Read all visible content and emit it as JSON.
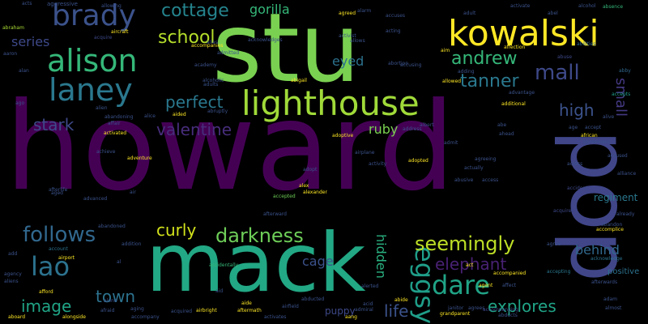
{
  "words": [
    {
      "text": "howard",
      "color": "#440154",
      "size": 150,
      "orient": "h"
    },
    {
      "text": "stu",
      "color": "#7ad151",
      "size": 118,
      "orient": "h"
    },
    {
      "text": "mack",
      "color": "#22a884",
      "size": 100,
      "orient": "h"
    },
    {
      "text": "pop",
      "color": "#404688",
      "size": 100,
      "orient": "v"
    },
    {
      "text": "kowalski",
      "color": "#fde725",
      "size": 44,
      "orient": "h"
    },
    {
      "text": "lighthouse",
      "color": "#a0da39",
      "size": 42,
      "orient": "h"
    },
    {
      "text": "alison",
      "color": "#35b779",
      "size": 38,
      "orient": "h"
    },
    {
      "text": "laney",
      "color": "#2a788e",
      "size": 38,
      "orient": "h"
    },
    {
      "text": "brady",
      "color": "#3b528b",
      "size": 36,
      "orient": "h"
    },
    {
      "text": "lao",
      "color": "#2c728e",
      "size": 32,
      "orient": "h"
    },
    {
      "text": "eggsy",
      "color": "#1f9e89",
      "size": 32,
      "orient": "v"
    },
    {
      "text": "dare",
      "color": "#20a386",
      "size": 32,
      "orient": "h"
    },
    {
      "text": "mall",
      "color": "#3e4989",
      "size": 26,
      "orient": "h"
    },
    {
      "text": "follows",
      "color": "#31688e",
      "size": 26,
      "orient": "h"
    },
    {
      "text": "seemingly",
      "color": "#bddf26",
      "size": 24,
      "orient": "h"
    },
    {
      "text": "darkness",
      "color": "#6ece58",
      "size": 24,
      "orient": "h"
    },
    {
      "text": "andrew",
      "color": "#35b779",
      "size": 22,
      "orient": "h"
    },
    {
      "text": "tanner",
      "color": "#2a788e",
      "size": 22,
      "orient": "h"
    },
    {
      "text": "cottage",
      "color": "#25848e",
      "size": 22,
      "orient": "h"
    },
    {
      "text": "school",
      "color": "#b5de2b",
      "size": 22,
      "orient": "h"
    },
    {
      "text": "perfect",
      "color": "#2a788e",
      "size": 20,
      "orient": "h"
    },
    {
      "text": "valentine",
      "color": "#472d7b",
      "size": 20,
      "orient": "h"
    },
    {
      "text": "stark",
      "color": "#3e4989",
      "size": 20,
      "orient": "h"
    },
    {
      "text": "curly",
      "color": "#d2e21b",
      "size": 20,
      "orient": "h"
    },
    {
      "text": "elephant",
      "color": "#482173",
      "size": 20,
      "orient": "h"
    },
    {
      "text": "image",
      "color": "#20a486",
      "size": 20,
      "orient": "h"
    },
    {
      "text": "town",
      "color": "#2c728e",
      "size": 20,
      "orient": "h"
    },
    {
      "text": "explores",
      "color": "#20a486",
      "size": 20,
      "orient": "h"
    },
    {
      "text": "life",
      "color": "#3b528b",
      "size": 20,
      "orient": "h"
    },
    {
      "text": "high",
      "color": "#3b528b",
      "size": 20,
      "orient": "h"
    },
    {
      "text": "small",
      "color": "#443983",
      "size": 18,
      "orient": "v"
    },
    {
      "text": "hidden",
      "color": "#29af7f",
      "size": 16,
      "orient": "v"
    },
    {
      "text": "series",
      "color": "#3e4989",
      "size": 16,
      "orient": "h"
    },
    {
      "text": "gorilla",
      "color": "#35b779",
      "size": 16,
      "orient": "h"
    },
    {
      "text": "eyed",
      "color": "#2c728e",
      "size": 16,
      "orient": "h"
    },
    {
      "text": "cage",
      "color": "#3b528b",
      "size": 16,
      "orient": "h"
    },
    {
      "text": "ruby",
      "color": "#7ad151",
      "size": 16,
      "orient": "h"
    },
    {
      "text": "behind",
      "color": "#31688e",
      "size": 16,
      "orient": "h"
    },
    {
      "text": "puppy",
      "color": "#3e4989",
      "size": 12,
      "orient": "h"
    },
    {
      "text": "regiment",
      "color": "#2a788e",
      "size": 12,
      "orient": "h"
    },
    {
      "text": "positive",
      "color": "#2c728e",
      "size": 10,
      "orient": "h"
    },
    {
      "text": "aggressive",
      "color": "#3b528b",
      "size": 7,
      "orient": "h"
    },
    {
      "text": "abraham",
      "color": "#aadc32",
      "size": 6,
      "orient": "h"
    },
    {
      "text": "aaron",
      "color": "#3b528b",
      "size": 6,
      "orient": "h"
    },
    {
      "text": "abandon",
      "color": "#3b528b",
      "size": 6,
      "orient": "h"
    },
    {
      "text": "abby",
      "color": "#31688e",
      "size": 6,
      "orient": "h"
    },
    {
      "text": "abuse",
      "color": "#3e4989",
      "size": 6,
      "orient": "h"
    },
    {
      "text": "abilities",
      "color": "#31688e",
      "size": 6,
      "orient": "h"
    },
    {
      "text": "absence",
      "color": "#35b779",
      "size": 6,
      "orient": "h"
    },
    {
      "text": "aboard",
      "color": "#fde725",
      "size": 6,
      "orient": "h"
    },
    {
      "text": "accept",
      "color": "#3b528b",
      "size": 6,
      "orient": "h"
    },
    {
      "text": "accepted",
      "color": "#6ece58",
      "size": 6,
      "orient": "h"
    },
    {
      "text": "accepting",
      "color": "#2a788e",
      "size": 6,
      "orient": "h"
    },
    {
      "text": "accepts",
      "color": "#1f9e89",
      "size": 6,
      "orient": "h"
    },
    {
      "text": "access",
      "color": "#3b528b",
      "size": 6,
      "orient": "h"
    },
    {
      "text": "accident",
      "color": "#3e4989",
      "size": 6,
      "orient": "h"
    },
    {
      "text": "accidentally",
      "color": "#35b779",
      "size": 6,
      "orient": "h"
    },
    {
      "text": "accompanied",
      "color": "#fde725",
      "size": 6,
      "orient": "h"
    },
    {
      "text": "accompanies",
      "color": "#fde725",
      "size": 6,
      "orient": "h"
    },
    {
      "text": "accompany",
      "color": "#3b528b",
      "size": 6,
      "orient": "h"
    },
    {
      "text": "accompanying",
      "color": "#3e4989",
      "size": 6,
      "orient": "h"
    },
    {
      "text": "accomplice",
      "color": "#fde725",
      "size": 6,
      "orient": "h"
    },
    {
      "text": "account",
      "color": "#2c728e",
      "size": 6,
      "orient": "h"
    },
    {
      "text": "accused",
      "color": "#3b528b",
      "size": 6,
      "orient": "h"
    },
    {
      "text": "accuses",
      "color": "#3b528b",
      "size": 6,
      "orient": "h"
    },
    {
      "text": "accusing",
      "color": "#3b528b",
      "size": 6,
      "orient": "h"
    },
    {
      "text": "acknowledge",
      "color": "#2c728e",
      "size": 6,
      "orient": "h"
    },
    {
      "text": "acknowledges",
      "color": "#3b528b",
      "size": 6,
      "orient": "h"
    },
    {
      "text": "acquire",
      "color": "#3e4989",
      "size": 6,
      "orient": "h"
    },
    {
      "text": "acquired",
      "color": "#3b528b",
      "size": 6,
      "orient": "h"
    },
    {
      "text": "acquires",
      "color": "#3e4989",
      "size": 6,
      "orient": "h"
    },
    {
      "text": "across",
      "color": "#3b528b",
      "size": 6,
      "orient": "h"
    },
    {
      "text": "act",
      "color": "#fde725",
      "size": 6,
      "orient": "h"
    },
    {
      "text": "acting",
      "color": "#3b528b",
      "size": 6,
      "orient": "h"
    },
    {
      "text": "activate",
      "color": "#3b528b",
      "size": 6,
      "orient": "h"
    },
    {
      "text": "activated",
      "color": "#fde725",
      "size": 6,
      "orient": "h"
    },
    {
      "text": "activates",
      "color": "#3b528b",
      "size": 6,
      "orient": "h"
    },
    {
      "text": "activist",
      "color": "#3b528b",
      "size": 6,
      "orient": "h"
    },
    {
      "text": "activity",
      "color": "#3b528b",
      "size": 6,
      "orient": "h"
    },
    {
      "text": "actually",
      "color": "#3b528b",
      "size": 6,
      "orient": "h"
    },
    {
      "text": "adam",
      "color": "#3b528b",
      "size": 6,
      "orient": "h"
    },
    {
      "text": "add",
      "color": "#3b528b",
      "size": 6,
      "orient": "h"
    },
    {
      "text": "adding",
      "color": "#3b528b",
      "size": 6,
      "orient": "h"
    },
    {
      "text": "addition",
      "color": "#3b528b",
      "size": 6,
      "orient": "h"
    },
    {
      "text": "additional",
      "color": "#fde725",
      "size": 6,
      "orient": "h"
    },
    {
      "text": "address",
      "color": "#3b528b",
      "size": 6,
      "orient": "h"
    },
    {
      "text": "admiral",
      "color": "#3b528b",
      "size": 6,
      "orient": "h"
    },
    {
      "text": "admit",
      "color": "#3b528b",
      "size": 6,
      "orient": "h"
    },
    {
      "text": "admitted",
      "color": "#3b528b",
      "size": 6,
      "orient": "h"
    },
    {
      "text": "adopt",
      "color": "#3b528b",
      "size": 6,
      "orient": "h"
    },
    {
      "text": "adopted",
      "color": "#fde725",
      "size": 6,
      "orient": "h"
    },
    {
      "text": "adoptive",
      "color": "#fde725",
      "size": 6,
      "orient": "h"
    },
    {
      "text": "adults",
      "color": "#3b528b",
      "size": 6,
      "orient": "h"
    },
    {
      "text": "advanced",
      "color": "#3b528b",
      "size": 6,
      "orient": "h"
    },
    {
      "text": "advantage",
      "color": "#3b528b",
      "size": 6,
      "orient": "h"
    },
    {
      "text": "adventure",
      "color": "#fde725",
      "size": 6,
      "orient": "h"
    },
    {
      "text": "affair",
      "color": "#3b528b",
      "size": 6,
      "orient": "h"
    },
    {
      "text": "affect",
      "color": "#3b528b",
      "size": 6,
      "orient": "h"
    },
    {
      "text": "affection",
      "color": "#fde725",
      "size": 6,
      "orient": "h"
    },
    {
      "text": "afford",
      "color": "#fde725",
      "size": 6,
      "orient": "h"
    },
    {
      "text": "afraid",
      "color": "#3b528b",
      "size": 6,
      "orient": "h"
    },
    {
      "text": "african",
      "color": "#fde725",
      "size": 6,
      "orient": "h"
    },
    {
      "text": "afterlife",
      "color": "#3b528b",
      "size": 6,
      "orient": "h"
    },
    {
      "text": "aftermath",
      "color": "#fde725",
      "size": 6,
      "orient": "h"
    },
    {
      "text": "afterward",
      "color": "#3b528b",
      "size": 6,
      "orient": "h"
    },
    {
      "text": "afterwards",
      "color": "#3b528b",
      "size": 6,
      "orient": "h"
    },
    {
      "text": "age",
      "color": "#3b528b",
      "size": 6,
      "orient": "h"
    },
    {
      "text": "aged",
      "color": "#3b528b",
      "size": 6,
      "orient": "h"
    },
    {
      "text": "agency",
      "color": "#3b528b",
      "size": 6,
      "orient": "h"
    },
    {
      "text": "agent",
      "color": "#fde725",
      "size": 6,
      "orient": "h"
    },
    {
      "text": "aging",
      "color": "#3b528b",
      "size": 6,
      "orient": "h"
    },
    {
      "text": "ago",
      "color": "#3b528b",
      "size": 6,
      "orient": "h"
    },
    {
      "text": "agree",
      "color": "#3b528b",
      "size": 6,
      "orient": "h"
    },
    {
      "text": "agreed",
      "color": "#fde725",
      "size": 6,
      "orient": "h"
    },
    {
      "text": "agreeing",
      "color": "#3b528b",
      "size": 6,
      "orient": "h"
    },
    {
      "text": "agreement",
      "color": "#3b528b",
      "size": 6,
      "orient": "h"
    },
    {
      "text": "agrees",
      "color": "#3b528b",
      "size": 6,
      "orient": "h"
    },
    {
      "text": "ahead",
      "color": "#3b528b",
      "size": 6,
      "orient": "h"
    },
    {
      "text": "aid",
      "color": "#3b528b",
      "size": 6,
      "orient": "h"
    },
    {
      "text": "aided",
      "color": "#fde725",
      "size": 6,
      "orient": "h"
    },
    {
      "text": "aide",
      "color": "#fde725",
      "size": 6,
      "orient": "h"
    },
    {
      "text": "aim",
      "color": "#fde725",
      "size": 6,
      "orient": "h"
    },
    {
      "text": "air",
      "color": "#3b528b",
      "size": 6,
      "orient": "h"
    },
    {
      "text": "airbright",
      "color": "#fde725",
      "size": 6,
      "orient": "h"
    },
    {
      "text": "aircraft",
      "color": "#fde725",
      "size": 6,
      "orient": "h"
    },
    {
      "text": "airfield",
      "color": "#3b528b",
      "size": 6,
      "orient": "h"
    },
    {
      "text": "airplane",
      "color": "#3b528b",
      "size": 6,
      "orient": "h"
    },
    {
      "text": "airport",
      "color": "#fde725",
      "size": 6,
      "orient": "h"
    },
    {
      "text": "al",
      "color": "#3b528b",
      "size": 6,
      "orient": "h"
    },
    {
      "text": "alan",
      "color": "#3b528b",
      "size": 6,
      "orient": "h"
    },
    {
      "text": "alarm",
      "color": "#3b528b",
      "size": 6,
      "orient": "h"
    },
    {
      "text": "albert",
      "color": "#3b528b",
      "size": 6,
      "orient": "h"
    },
    {
      "text": "alcohol",
      "color": "#3b528b",
      "size": 6,
      "orient": "h"
    },
    {
      "text": "alcoholic",
      "color": "#3b528b",
      "size": 6,
      "orient": "h"
    },
    {
      "text": "alex",
      "color": "#fde725",
      "size": 6,
      "orient": "h"
    },
    {
      "text": "alexander",
      "color": "#fde725",
      "size": 6,
      "orient": "h"
    },
    {
      "text": "alias",
      "color": "#3b528b",
      "size": 6,
      "orient": "h"
    },
    {
      "text": "alice",
      "color": "#3b528b",
      "size": 6,
      "orient": "h"
    },
    {
      "text": "alien",
      "color": "#3b528b",
      "size": 6,
      "orient": "h"
    },
    {
      "text": "aliens",
      "color": "#3b528b",
      "size": 6,
      "orient": "h"
    },
    {
      "text": "alive",
      "color": "#3b528b",
      "size": 6,
      "orient": "h"
    },
    {
      "text": "alliance",
      "color": "#3b528b",
      "size": 6,
      "orient": "h"
    },
    {
      "text": "allowed",
      "color": "#fde725",
      "size": 6,
      "orient": "h"
    },
    {
      "text": "allowing",
      "color": "#3b528b",
      "size": 6,
      "orient": "h"
    },
    {
      "text": "allows",
      "color": "#3b528b",
      "size": 6,
      "orient": "h"
    },
    {
      "text": "almost",
      "color": "#3b528b",
      "size": 6,
      "orient": "h"
    },
    {
      "text": "alone",
      "color": "#3b528b",
      "size": 6,
      "orient": "h"
    },
    {
      "text": "alongside",
      "color": "#fde725",
      "size": 6,
      "orient": "h"
    },
    {
      "text": "already",
      "color": "#3b528b",
      "size": 6,
      "orient": "h"
    },
    {
      "text": "alerted",
      "color": "#3b528b",
      "size": 6,
      "orient": "h"
    },
    {
      "text": "abducted",
      "color": "#3b528b",
      "size": 6,
      "orient": "h"
    },
    {
      "text": "abandoned",
      "color": "#3b528b",
      "size": 6,
      "orient": "h"
    },
    {
      "text": "abandoning",
      "color": "#3b528b",
      "size": 6,
      "orient": "h"
    },
    {
      "text": "abigail",
      "color": "#fde725",
      "size": 6,
      "orient": "h"
    },
    {
      "text": "abe",
      "color": "#3b528b",
      "size": 6,
      "orient": "h"
    },
    {
      "text": "abortion",
      "color": "#3b528b",
      "size": 6,
      "orient": "h"
    },
    {
      "text": "abruptly",
      "color": "#3b528b",
      "size": 6,
      "orient": "h"
    },
    {
      "text": "abusive",
      "color": "#3b528b",
      "size": 6,
      "orient": "h"
    },
    {
      "text": "academy",
      "color": "#3b528b",
      "size": 6,
      "orient": "h"
    },
    {
      "text": "adult",
      "color": "#3b528b",
      "size": 6,
      "orient": "h"
    },
    {
      "text": "achieve",
      "color": "#3b528b",
      "size": 6,
      "orient": "h"
    },
    {
      "text": "acid",
      "color": "#3b528b",
      "size": 6,
      "orient": "h"
    },
    {
      "text": "janitor",
      "color": "#3b528b",
      "size": 6,
      "orient": "h"
    },
    {
      "text": "grandparent",
      "color": "#fde725",
      "size": 6,
      "orient": "h"
    },
    {
      "text": "abducts",
      "color": "#3b528b",
      "size": 6,
      "orient": "h"
    },
    {
      "text": "aang",
      "color": "#fde725",
      "size": 6,
      "orient": "h"
    },
    {
      "text": "abide",
      "color": "#fde725",
      "size": 6,
      "orient": "h"
    },
    {
      "text": "abel",
      "color": "#3b528b",
      "size": 6,
      "orient": "h"
    },
    {
      "text": "acts",
      "color": "#3b528b",
      "size": 6,
      "orient": "h"
    },
    {
      "text": "aiko",
      "color": "#3b528b",
      "size": 6,
      "orient": "h"
    },
    {
      "text": "ally",
      "color": "#3b528b",
      "size": 6,
      "orient": "h"
    },
    {
      "text": "ah",
      "color": "#3b528b",
      "size": 6,
      "orient": "h"
    },
    {
      "text": "absence",
      "color": "#3b528b",
      "size": 6,
      "orient": "h"
    }
  ]
}
